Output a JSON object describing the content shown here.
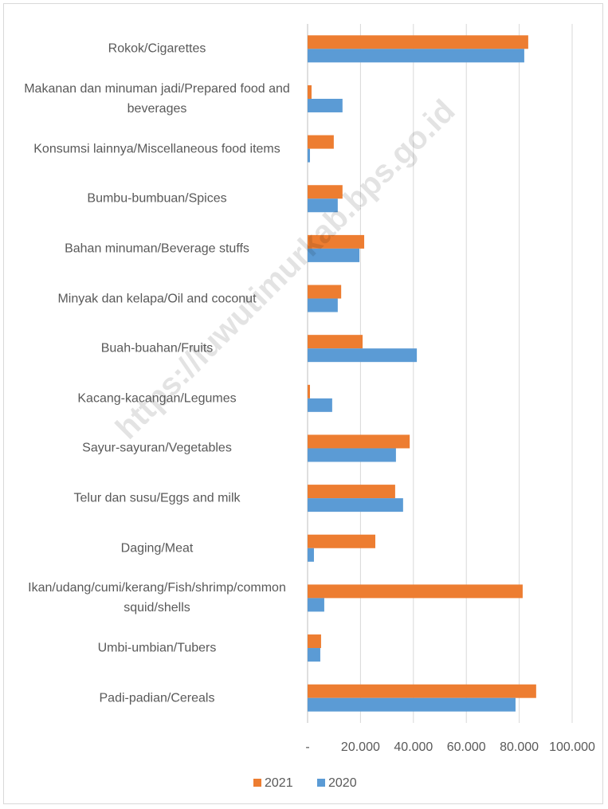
{
  "chart_data": {
    "type": "hbar",
    "watermark": "https://luwutimurkab.bps.go.id",
    "categories": [
      "Rokok/Cigarettes",
      "Makanan dan minuman jadi/Prepared food and beverages",
      "Konsumsi lainnya/Miscellaneous food items",
      "Bumbu-bumbuan/Spices",
      "Bahan minuman/Beverage stuffs",
      "Minyak dan kelapa/Oil and coconut",
      "Buah-buahan/Fruits",
      "Kacang-kacangan/Legumes",
      "Sayur-sayuran/Vegetables",
      "Telur dan susu/Eggs and milk",
      "Daging/Meat",
      "Ikan/udang/cumi/kerang/Fish/shrimp/common squid/shells",
      "Umbi-umbian/Tubers",
      "Padi-padian/Cereals"
    ],
    "series": [
      {
        "name": "2021",
        "color": "#ed7d31",
        "values": [
          83400,
          1500,
          9900,
          13200,
          21400,
          12700,
          20800,
          900,
          38600,
          33100,
          25600,
          81300,
          5100,
          86400
        ]
      },
      {
        "name": "2020",
        "color": "#5b9bd5",
        "values": [
          81900,
          13200,
          900,
          11400,
          19600,
          11400,
          41300,
          9300,
          33400,
          36100,
          2400,
          6300,
          4800,
          78600
        ]
      }
    ],
    "xlim": [
      0,
      100000
    ],
    "xticks": [
      {
        "value": 0,
        "label": "-"
      },
      {
        "value": 20000,
        "label": "20.000"
      },
      {
        "value": 40000,
        "label": "40.000"
      },
      {
        "value": 60000,
        "label": "60.000"
      },
      {
        "value": 80000,
        "label": "80.000"
      },
      {
        "value": 100000,
        "label": "100.000"
      }
    ],
    "grid": true,
    "legend": "bottom"
  }
}
